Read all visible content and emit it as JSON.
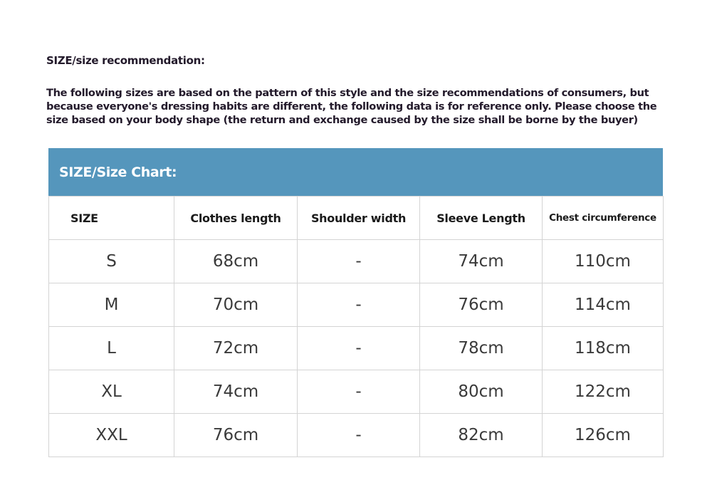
{
  "title": "SIZE/size recommendation:",
  "description": "The following sizes are based on the pattern of this style and the size recommendations of consumers, but because everyone's dressing habits are different, the following data is for reference only. Please choose the size based on your body shape (the return and exchange caused by the size shall be borne by the buyer)",
  "chart_title": "SIZE/Size Chart:",
  "header_color": "#5596bc",
  "columns": [
    "SIZE",
    "Clothes length",
    "Shoulder width",
    "Sleeve Length",
    "Chest circumference"
  ],
  "rows": [
    [
      "S",
      "68cm",
      "-",
      "74cm",
      "110cm"
    ],
    [
      "M",
      "70cm",
      "-",
      "76cm",
      "114cm"
    ],
    [
      "L",
      "72cm",
      "-",
      "78cm",
      "118cm"
    ],
    [
      "XL",
      "74cm",
      "-",
      "80cm",
      "122cm"
    ],
    [
      "XXL",
      "76cm",
      "-",
      "82cm",
      "126cm"
    ]
  ]
}
